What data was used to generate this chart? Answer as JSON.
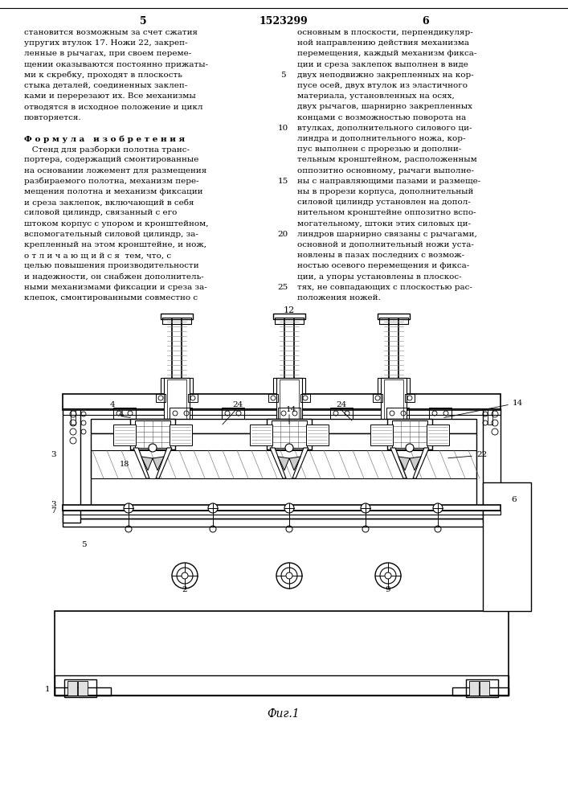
{
  "page_title": "1523299",
  "page_num_left": "5",
  "page_num_right": "6",
  "fig_caption": "Фиг.1",
  "background_color": "#ffffff",
  "text_color": "#000000",
  "line_color": "#000000",
  "left_text_lines": [
    "становится возможным за счет сжатия",
    "упругих втулок 17. Ножи 22, закреп-",
    "ленные в рычагах, при своем переме-",
    "щении оказываются постоянно прижаты-",
    "ми к скребку, проходят в плоскость",
    "стыка деталей, соединенных заклеп-",
    "ками и перерезают их. Все механизмы",
    "отводятся в исходное положение и цикл",
    "повторяется.",
    "",
    "Ф о р м у л а   и з о б р е т е н и я",
    "   Стенд для разборки полотна транс-",
    "портера, содержащий смонтированные",
    "на основании ложемент для размещения",
    "разбираемого полотна, механизм пере-",
    "мещения полотна и механизм фиксации",
    "и среза заклепок, включающий в себя",
    "силовой цилиндр, связанный с его",
    "штоком корпус с упором и кронштейном,",
    "вспомогательный силовой цилиндр, за-",
    "крепленный на этом кронштейне, и нож,",
    "о т л и ч а ю щ и й с я  тем, что, с",
    "целью повышения производительности",
    "и надежности, он снабжен дополнитель-",
    "ными механизмами фиксации и среза за-",
    "клепок, смонтированными совместно с"
  ],
  "right_text_lines": [
    "основным в плоскости, перпендикуляр-",
    "ной направлению действия механизма",
    "перемещения, каждый механизм фикса-",
    "ции и среза заклепок выполнен в виде",
    "двух неподвижно закрепленных на кор-",
    "пусе осей, двух втулок из эластичного",
    "материала, установленных на осях,",
    "двух рычагов, шарнирно закрепленных",
    "концами с возможностью поворота на",
    "втулках, дополнительного силового ци-",
    "линдра и дополнительного ножа, кор-",
    "пус выполнен с прорезью и дополни-",
    "тельным кронштейном, расположенным",
    "оппозитно основному, рычаги выполне-",
    "ны с направляющими пазами и размеще-",
    "ны в прорези корпуса, дополнительный",
    "силовой цилиндр установлен на допол-",
    "нительном кронштейне оппозитно вспо-",
    "могательному, штоки этих силовых ци-",
    "линдров шарнирно связаны с рычагами,",
    "основной и дополнительный ножи уста-",
    "новлены в пазах последних с возмож-",
    "ностью осевого перемещения и фикса-",
    "ции, а упоры установлены в плоскос-",
    "тях, не совпадающих с плоскостью рас-",
    "положения ножей."
  ],
  "line_numbers": [
    "5",
    "10",
    "15",
    "20",
    "25"
  ],
  "line_number_rows": [
    4,
    9,
    14,
    19,
    24
  ]
}
